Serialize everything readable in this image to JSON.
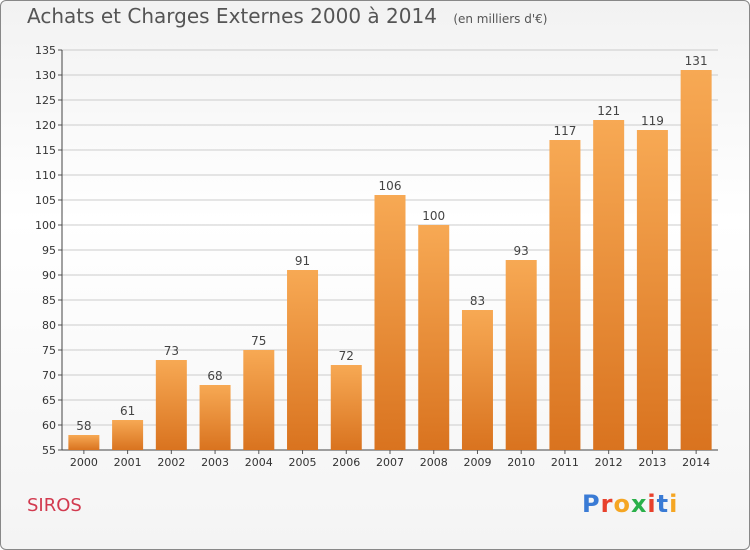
{
  "header": {
    "title": "Achats et Charges Externes 2000 à 2014",
    "subtitle": "(en milliers d'€)"
  },
  "footer": {
    "place": "SIROS",
    "logo_text": "Proxiti",
    "logo_colors": [
      "#3a7bd5",
      "#e8412c",
      "#f5a623",
      "#2bb04a",
      "#e8412c",
      "#3a7bd5",
      "#f5a623"
    ]
  },
  "colors": {
    "bar_light": "#f7a954",
    "bar_dark": "#d9731f",
    "grid": "#cccccc",
    "axis_text": "#333333",
    "place": "#d23a4f"
  },
  "chart_data": {
    "type": "bar",
    "title": "Achats et Charges Externes 2000 à 2014",
    "subtitle": "(en milliers d'€)",
    "categories": [
      "2000",
      "2001",
      "2002",
      "2003",
      "2004",
      "2005",
      "2006",
      "2007",
      "2008",
      "2009",
      "2010",
      "2011",
      "2012",
      "2013",
      "2014"
    ],
    "values": [
      58,
      61,
      73,
      68,
      75,
      91,
      72,
      106,
      100,
      83,
      93,
      117,
      121,
      119,
      131
    ],
    "ylim": [
      55,
      135
    ],
    "yticks": [
      55,
      60,
      65,
      70,
      75,
      80,
      85,
      90,
      95,
      100,
      105,
      110,
      115,
      120,
      125,
      130,
      135
    ],
    "grid": true,
    "xlabel": "",
    "ylabel": ""
  }
}
